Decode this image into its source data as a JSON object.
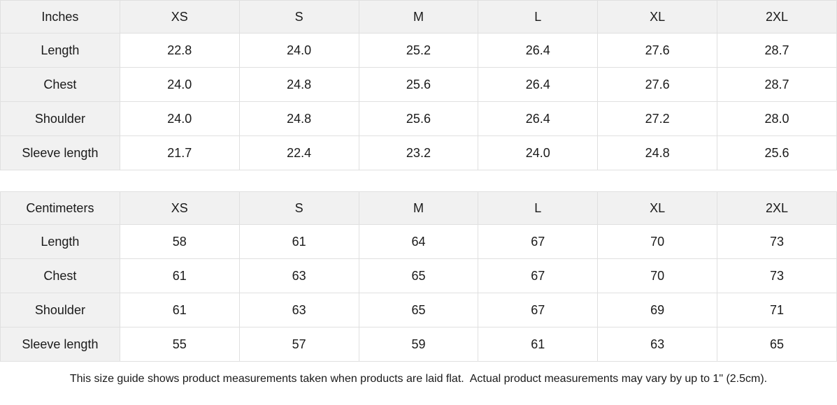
{
  "colors": {
    "header_background": "#f1f1f1",
    "label_column_background": "#f1f1f1",
    "cell_background": "#ffffff",
    "border": "#e0e0e0",
    "text": "#1a1a1a"
  },
  "tables": [
    {
      "unit_label": "Inches",
      "sizes": [
        "XS",
        "S",
        "M",
        "L",
        "XL",
        "2XL"
      ],
      "rows": [
        {
          "label": "Length",
          "values": [
            "22.8",
            "24.0",
            "25.2",
            "26.4",
            "27.6",
            "28.7"
          ]
        },
        {
          "label": "Chest",
          "values": [
            "24.0",
            "24.8",
            "25.6",
            "26.4",
            "27.6",
            "28.7"
          ]
        },
        {
          "label": "Shoulder",
          "values": [
            "24.0",
            "24.8",
            "25.6",
            "26.4",
            "27.2",
            "28.0"
          ]
        },
        {
          "label": "Sleeve length",
          "values": [
            "21.7",
            "22.4",
            "23.2",
            "24.0",
            "24.8",
            "25.6"
          ]
        }
      ]
    },
    {
      "unit_label": "Centimeters",
      "sizes": [
        "XS",
        "S",
        "M",
        "L",
        "XL",
        "2XL"
      ],
      "rows": [
        {
          "label": "Length",
          "values": [
            "58",
            "61",
            "64",
            "67",
            "70",
            "73"
          ]
        },
        {
          "label": "Chest",
          "values": [
            "61",
            "63",
            "65",
            "67",
            "70",
            "73"
          ]
        },
        {
          "label": "Shoulder",
          "values": [
            "61",
            "63",
            "65",
            "67",
            "69",
            "71"
          ]
        },
        {
          "label": "Sleeve length",
          "values": [
            "55",
            "57",
            "59",
            "61",
            "63",
            "65"
          ]
        }
      ]
    }
  ],
  "footer_note": "This size guide shows product measurements taken when products are laid flat.  Actual product measurements may vary by up to 1\" (2.5cm)."
}
